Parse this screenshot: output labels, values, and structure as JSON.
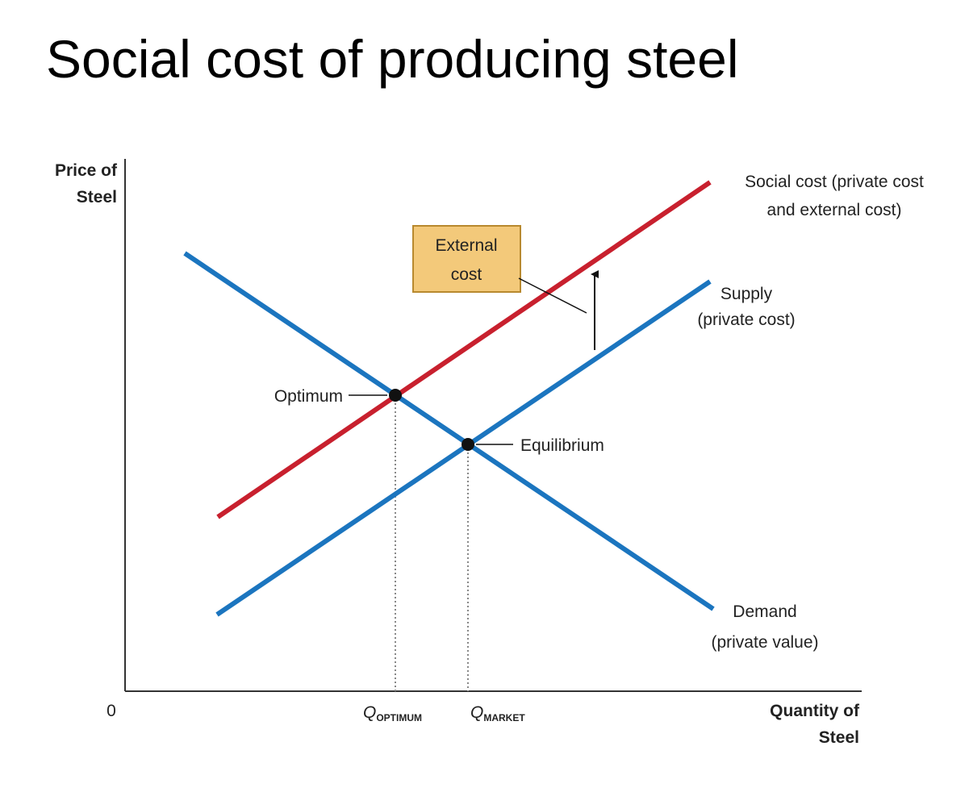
{
  "title": "Social cost of producing steel",
  "y_axis_label": [
    "Price of",
    "Steel"
  ],
  "x_axis_label": [
    "Quantity of",
    "Steel"
  ],
  "origin_label": "0",
  "curves": [
    {
      "label": [
        "Social cost (private cost",
        "and external cost)"
      ]
    },
    {
      "label": [
        "Supply",
        "(private cost)"
      ]
    },
    {
      "label": [
        "Demand",
        "(private value)"
      ]
    }
  ],
  "points": [
    {
      "label": "Optimum"
    },
    {
      "label": "Equilibrium"
    }
  ],
  "quantities": [
    {
      "symbol": "Q",
      "subscript": "OPTIMUM"
    },
    {
      "symbol": "Q",
      "subscript": "MARKET"
    }
  ],
  "callout": [
    "External",
    "cost"
  ]
}
